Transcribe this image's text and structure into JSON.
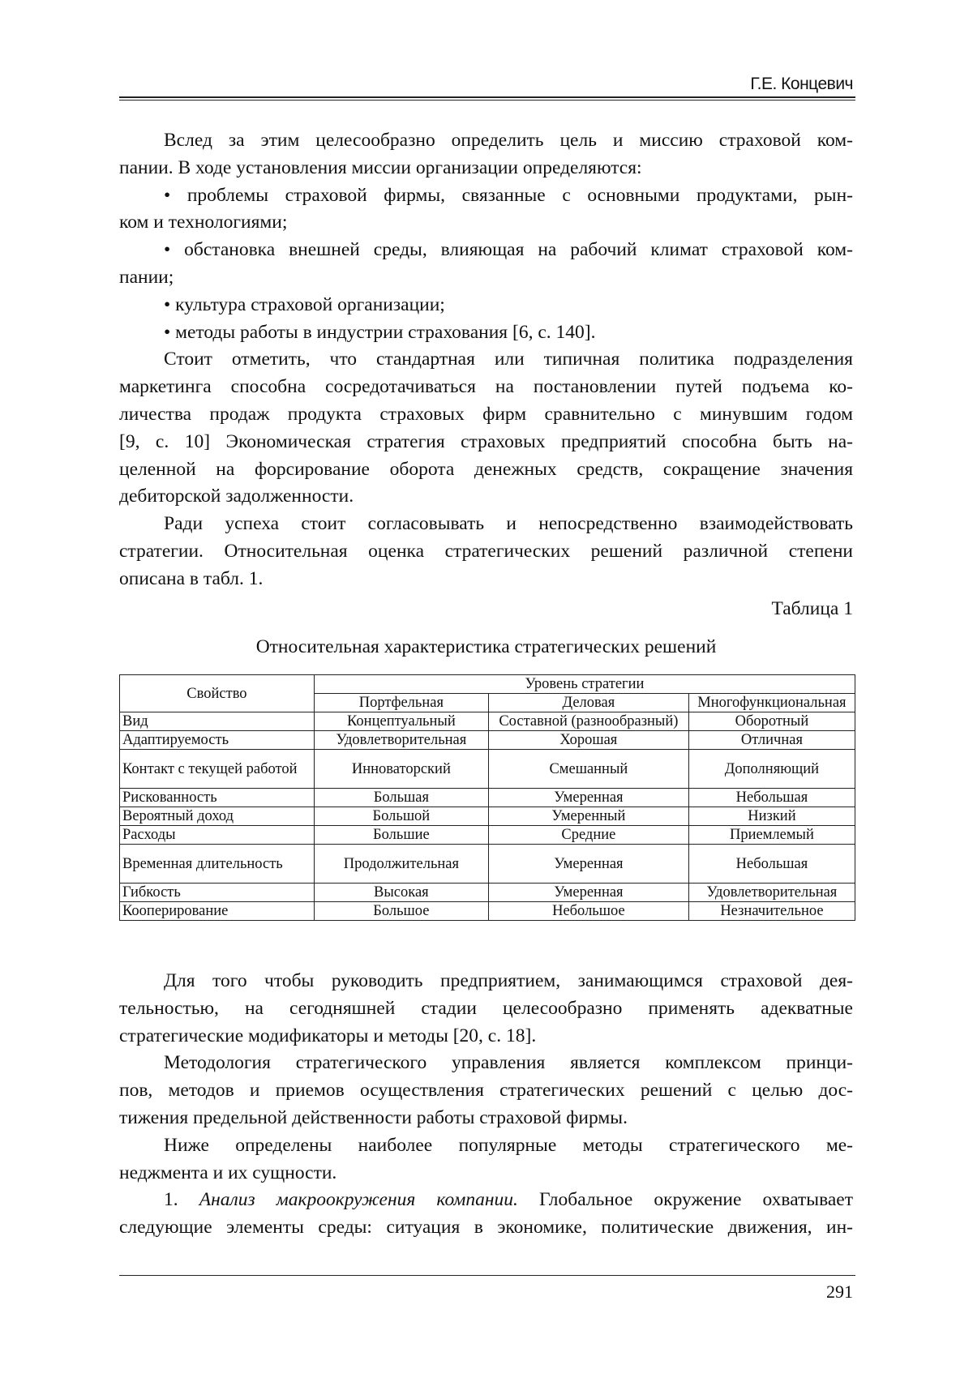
{
  "header": {
    "author": "Г.Е. Концевич"
  },
  "block1": [
    {
      "t": "Вслед за этим целесообразно определить цель и миссию страховой ком-",
      "ind": true
    },
    {
      "t": "пании. В ходе установления миссии организации определяются:",
      "end": true
    },
    {
      "t": "• проблемы страховой фирмы, связанные с основными продуктами, рын-",
      "ind": true
    },
    {
      "t": "ком и технологиями;",
      "end": true
    },
    {
      "t": "• обстановка внешней среды, влияющая на рабочий климат страховой ком-",
      "ind": true
    },
    {
      "t": "пании;",
      "end": true
    },
    {
      "t": "• культура страховой организации;",
      "ind": true,
      "end": true
    },
    {
      "t": "• методы работы в индустрии страхования [6, с. 140].",
      "ind": true,
      "end": true
    },
    {
      "t": "Стоит отметить, что стандартная или типичная политика подразделения",
      "ind": true
    },
    {
      "t": "маркетинга способна сосредотачиваться на постановлении путей подъема ко-"
    },
    {
      "t": "личества продаж продукта страховых фирм сравнительно с минувшим годом"
    },
    {
      "t": "[9, с. 10] Экономическая стратегия страховых предприятий способна быть на-"
    },
    {
      "t": "целенной на форсирование оборота денежных средств, сокращение значения"
    },
    {
      "t": "дебиторской задолженности.",
      "end": true
    },
    {
      "t": "Ради успеха стоит согласовывать и непосредственно взаимодействовать",
      "ind": true
    },
    {
      "t": "стратегии. Относительная оценка стратегических решений различной степени"
    },
    {
      "t": "описана в табл. 1.",
      "end": true
    }
  ],
  "table_label": "Таблица 1",
  "table_title": "Относительная характеристика стратегических решений",
  "table": {
    "property_header": "Свойство",
    "level_header": "Уровень стратегии",
    "columns": [
      "Портфельная",
      "Деловая",
      "Многофункциональная"
    ],
    "rows": [
      [
        "Вид",
        "Концептуальный",
        "Составной (разнообразный)",
        "Оборотный"
      ],
      [
        "Адаптируемость",
        "Удовлетворительная",
        "Хорошая",
        "Отличная"
      ],
      [
        "Контакт с текущей работой",
        "Инноваторский",
        "Смешанный",
        "Дополняющий"
      ],
      [
        "Рискованность",
        "Большая",
        "Умеренная",
        "Небольшая"
      ],
      [
        "Вероятный доход",
        "Большой",
        "Умеренный",
        "Низкий"
      ],
      [
        "Расходы",
        "Большие",
        "Средние",
        "Приемлемый"
      ],
      [
        "Временная длительность",
        "Продолжительная",
        "Умеренная",
        "Небольшая"
      ],
      [
        "Гибкость",
        "Высокая",
        "Умеренная",
        "Удовлетворительная"
      ],
      [
        "Кооперирование",
        "Большое",
        "Небольшое",
        "Незначительное"
      ]
    ]
  },
  "block2": [
    {
      "t": "Для того чтобы руководить предприятием, занимающимся страховой дея-",
      "ind": true
    },
    {
      "t": "тельностью, на сегодняшней стадии целесообразно применять адекватные"
    },
    {
      "t": "стратегические модификаторы и методы [20, с. 18].",
      "end": true
    },
    {
      "t": "Методология стратегического управления является комплексом принци-",
      "ind": true
    },
    {
      "t": "пов, методов и приемов осуществления стратегических решений с целью дос-"
    },
    {
      "t": "тижения предельной действенности работы страховой фирмы.",
      "end": true
    },
    {
      "t": "Ниже определены наиболее популярные методы стратегического ме-",
      "ind": true
    },
    {
      "t": "неджмента и их сущности.",
      "end": true
    },
    {
      "t": "1. ",
      "it": "Анализ макроокружения компании.",
      "rest": " Глобальное окружение охватывает",
      "ind": true
    },
    {
      "t": "следующие элементы среды: ситуация в экономике, политические движения, ин-"
    }
  ],
  "page_number": "291"
}
